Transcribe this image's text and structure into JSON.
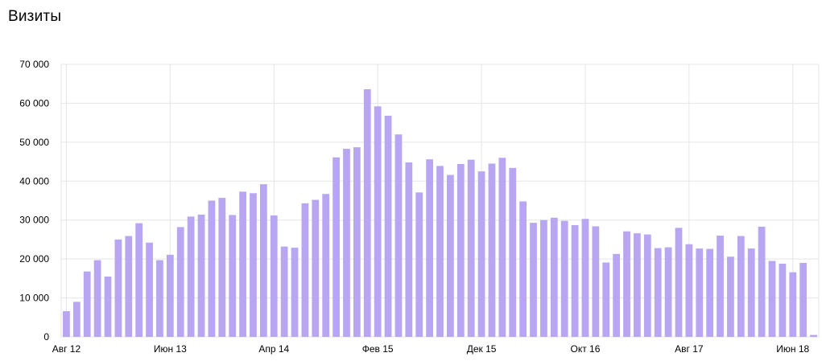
{
  "header": {
    "title": "Визиты"
  },
  "chart_data": {
    "type": "bar",
    "title": "Визиты",
    "bar_color": "#b8a6f2",
    "grid_color": "#e5e5e5",
    "ylim": [
      0,
      70000
    ],
    "yticks": [
      0,
      10000,
      20000,
      30000,
      40000,
      50000,
      60000,
      70000
    ],
    "ytick_labels": [
      "0",
      "10 000",
      "20 000",
      "30 000",
      "40 000",
      "50 000",
      "60 000",
      "70 000"
    ],
    "xtick_labels": [
      {
        "index": 0,
        "label": "Авг 12"
      },
      {
        "index": 10,
        "label": "Июн 13"
      },
      {
        "index": 20,
        "label": "Апр 14"
      },
      {
        "index": 30,
        "label": "Фев 15"
      },
      {
        "index": 40,
        "label": "Дек 15"
      },
      {
        "index": 50,
        "label": "Окт 16"
      },
      {
        "index": 60,
        "label": "Авг 17"
      },
      {
        "index": 70,
        "label": "Июн 18"
      }
    ],
    "categories": [
      "Авг 12",
      "Сен 12",
      "Окт 12",
      "Ноя 12",
      "Дек 12",
      "Янв 13",
      "Фев 13",
      "Мар 13",
      "Апр 13",
      "Май 13",
      "Июн 13",
      "Июл 13",
      "Авг 13",
      "Сен 13",
      "Окт 13",
      "Ноя 13",
      "Дек 13",
      "Янв 14",
      "Фев 14",
      "Мар 14",
      "Апр 14",
      "Май 14",
      "Июн 14",
      "Июл 14",
      "Авг 14",
      "Сен 14",
      "Окт 14",
      "Ноя 14",
      "Дек 14",
      "Янв 15",
      "Фев 15",
      "Мар 15",
      "Апр 15",
      "Май 15",
      "Июн 15",
      "Июл 15",
      "Авг 15",
      "Сен 15",
      "Окт 15",
      "Ноя 15",
      "Дек 15",
      "Янв 16",
      "Фев 16",
      "Мар 16",
      "Апр 16",
      "Май 16",
      "Июн 16",
      "Июл 16",
      "Авг 16",
      "Сен 16",
      "Окт 16",
      "Ноя 16",
      "Дек 16",
      "Янв 17",
      "Фев 17",
      "Мар 17",
      "Апр 17",
      "Май 17",
      "Июн 17",
      "Июл 17",
      "Авг 17",
      "Сен 17",
      "Окт 17",
      "Ноя 17",
      "Дек 17",
      "Янв 18",
      "Фев 18",
      "Мар 18",
      "Апр 18",
      "Май 18",
      "Июн 18",
      "Июл 18",
      "Авг 18"
    ],
    "values": [
      6600,
      9000,
      16800,
      19700,
      15500,
      25000,
      25900,
      29200,
      24200,
      19700,
      21100,
      28200,
      30900,
      31400,
      35000,
      35700,
      31300,
      37300,
      36900,
      39200,
      31200,
      23200,
      22900,
      34300,
      35200,
      36700,
      46100,
      48300,
      48700,
      63600,
      59200,
      56800,
      52000,
      44800,
      37100,
      45600,
      43900,
      41600,
      44400,
      45500,
      42500,
      44500,
      46000,
      43400,
      34800,
      29300,
      30000,
      30600,
      29800,
      28700,
      30300,
      28400,
      19100,
      21300,
      27100,
      26600,
      26300,
      22800,
      23000,
      28000,
      23800,
      22700,
      22600,
      26000,
      20600,
      25900,
      22700,
      28300,
      19500,
      18800,
      16600,
      19000,
      500
    ]
  }
}
